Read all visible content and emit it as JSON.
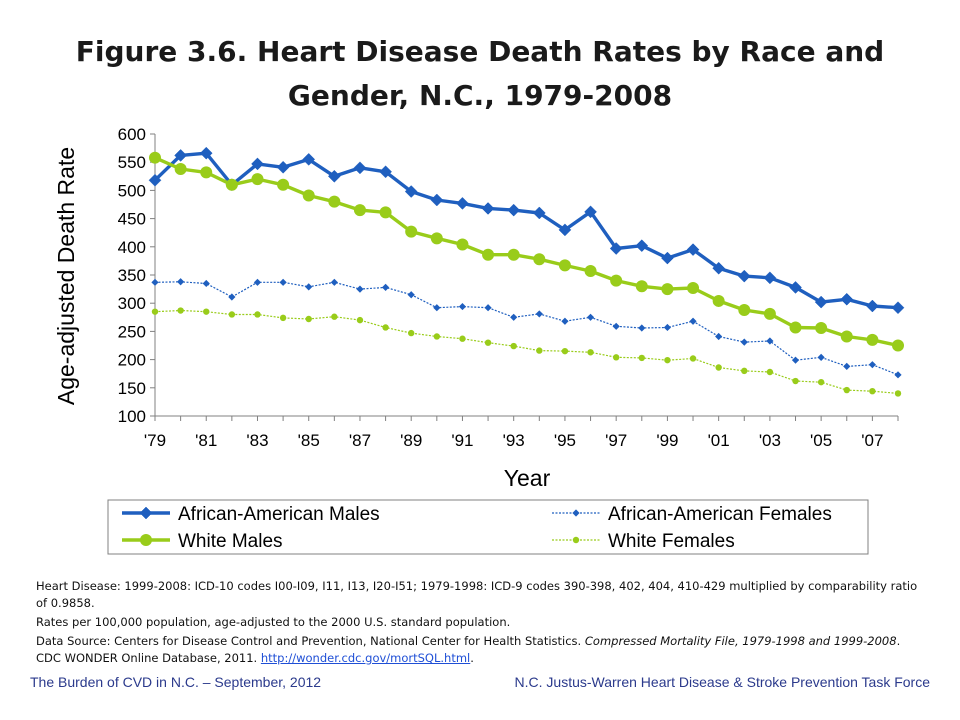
{
  "title": {
    "line1": "Figure 3.6. Heart Disease Death Rates by Race and",
    "line2": "Gender, N.C., 1979-2008"
  },
  "chart_data": {
    "type": "line",
    "title": "Figure 3.6. Heart Disease Death Rates by Race and Gender, N.C., 1979-2008",
    "xlabel": "Year",
    "ylabel": "Age-adjusted Death Rate",
    "ylim": [
      100,
      600
    ],
    "yticks": [
      100,
      150,
      200,
      250,
      300,
      350,
      400,
      450,
      500,
      550,
      600
    ],
    "xlim": [
      1979,
      2008
    ],
    "x": [
      1979,
      1980,
      1981,
      1982,
      1983,
      1984,
      1985,
      1986,
      1987,
      1988,
      1989,
      1990,
      1991,
      1992,
      1993,
      1994,
      1995,
      1996,
      1997,
      1998,
      1999,
      2000,
      2001,
      2002,
      2003,
      2004,
      2005,
      2006,
      2007,
      2008
    ],
    "xtick_years": [
      1979,
      1981,
      1983,
      1985,
      1987,
      1989,
      1991,
      1993,
      1995,
      1997,
      1999,
      2001,
      2003,
      2005,
      2007
    ],
    "xtick_labels": [
      "'79",
      "'81",
      "'83",
      "'85",
      "'87",
      "'89",
      "'91",
      "'93",
      "'95",
      "'97",
      "'99",
      "'01",
      "'03",
      "'05",
      "'07"
    ],
    "grid": false,
    "legend_position": "bottom",
    "series": [
      {
        "name": "African-American Males",
        "color": "#1f5fbf",
        "style": "bold-diamond",
        "values": [
          518,
          562,
          566,
          510,
          547,
          541,
          555,
          525,
          540,
          533,
          498,
          483,
          477,
          468,
          465,
          460,
          430,
          462,
          397,
          402,
          380,
          395,
          362,
          348,
          345,
          328,
          302,
          307,
          295,
          292
        ]
      },
      {
        "name": "African-American Females",
        "color": "#1f5fbf",
        "style": "thin-diamond",
        "values": [
          337,
          338,
          335,
          311,
          337,
          337,
          329,
          337,
          325,
          328,
          315,
          292,
          294,
          292,
          275,
          281,
          268,
          275,
          259,
          256,
          257,
          268,
          241,
          231,
          233,
          199,
          204,
          188,
          191,
          173
        ]
      },
      {
        "name": "White Males",
        "color": "#99cc1a",
        "style": "bold-circle",
        "values": [
          558,
          538,
          532,
          510,
          520,
          510,
          491,
          480,
          465,
          461,
          427,
          415,
          404,
          386,
          386,
          378,
          367,
          357,
          340,
          330,
          325,
          327,
          304,
          288,
          281,
          257,
          256,
          241,
          235,
          225
        ]
      },
      {
        "name": "White Females",
        "color": "#99cc1a",
        "style": "thin-circle",
        "values": [
          285,
          287,
          285,
          280,
          280,
          274,
          272,
          276,
          270,
          257,
          247,
          241,
          237,
          230,
          224,
          216,
          215,
          213,
          204,
          203,
          199,
          202,
          186,
          180,
          178,
          162,
          160,
          146,
          144,
          140
        ]
      }
    ]
  },
  "notes": {
    "line1": "Heart Disease: 1999-2008: ICD-10 codes I00-I09, I11, I13, I20-I51; 1979-1998: ICD-9 codes 390-398, 402, 404, 410-429 multiplied by comparability ratio of 0.9858.",
    "line2": "Rates per 100,000 population, age-adjusted to the 2000 U.S. standard population.",
    "line3_prefix": "Data Source: Centers for Disease Control and Prevention, National Center for Health Statistics. ",
    "line3_italic": "Compressed Mortality File, 1979-1998 and 1999-2008",
    "line3_suffix": ". CDC WONDER Online Database, 2011. ",
    "link": "http://wonder.cdc.gov/mortSQL.html",
    "line3_end": "."
  },
  "footer": {
    "left": "The Burden of CVD in N.C. – September, 2012",
    "right": "N.C. Justus-Warren Heart Disease & Stroke Prevention Task Force"
  }
}
